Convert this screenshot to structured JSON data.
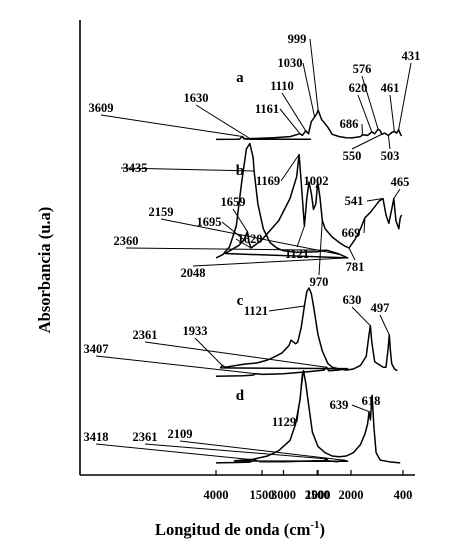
{
  "chart_data": {
    "type": "line",
    "xlabel": "Longitud de onda (cm",
    "xlabel_sup": "-1",
    "xlabel_close": ")",
    "ylabel": "Absorbancia (u.a)",
    "x_ticks": [
      "4000",
      "3000",
      "2500",
      "2000",
      "1500",
      "1000",
      "400"
    ],
    "grid": false,
    "series": [
      {
        "name": "a",
        "label_at": 1740,
        "points": [
          [
            4000,
            0.05
          ],
          [
            3700,
            0.06
          ],
          [
            3650,
            0.08
          ],
          [
            3609,
            0.3
          ],
          [
            3570,
            0.08
          ],
          [
            3450,
            0.06
          ],
          [
            2600,
            0.07
          ],
          [
            1700,
            0.1
          ],
          [
            1630,
            0.12
          ],
          [
            1400,
            0.2
          ],
          [
            1250,
            0.3
          ],
          [
            1161,
            0.55
          ],
          [
            1140,
            0.4
          ],
          [
            1110,
            0.8
          ],
          [
            1085,
            0.55
          ],
          [
            1060,
            1.6
          ],
          [
            1030,
            2.0
          ],
          [
            1010,
            2.3
          ],
          [
            999,
            2.6
          ],
          [
            975,
            1.8
          ],
          [
            930,
            1.1
          ],
          [
            900,
            0.5
          ],
          [
            850,
            0.3
          ],
          [
            800,
            0.2
          ],
          [
            760,
            0.18
          ],
          [
            700,
            0.3
          ],
          [
            686,
            0.45
          ],
          [
            650,
            0.4
          ],
          [
            620,
            0.7
          ],
          [
            600,
            0.55
          ],
          [
            576,
            0.95
          ],
          [
            560,
            0.8
          ],
          [
            550,
            0.5
          ],
          [
            530,
            0.6
          ],
          [
            503,
            0.4
          ],
          [
            480,
            0.65
          ],
          [
            461,
            0.75
          ],
          [
            445,
            0.6
          ],
          [
            431,
            0.9
          ],
          [
            420,
            0.55
          ],
          [
            410,
            0.35
          ]
        ]
      },
      {
        "name": "b",
        "label_at": 1740,
        "points": [
          [
            4000,
            0.22
          ],
          [
            3900,
            0.28
          ],
          [
            3800,
            0.42
          ],
          [
            3700,
            0.8
          ],
          [
            3620,
            1.6
          ],
          [
            3550,
            2.2
          ],
          [
            3500,
            2.3
          ],
          [
            3450,
            2.05
          ],
          [
            3435,
            1.8
          ],
          [
            3380,
            1.2
          ],
          [
            3300,
            0.75
          ],
          [
            3200,
            0.5
          ],
          [
            3100,
            0.4
          ],
          [
            3000,
            0.35
          ],
          [
            2800,
            0.32
          ],
          [
            2500,
            0.33
          ],
          [
            2360,
            0.36
          ],
          [
            2200,
            0.3
          ],
          [
            2159,
            0.28
          ],
          [
            2048,
            0.22
          ],
          [
            1900,
            0.3
          ],
          [
            1750,
            0.45
          ],
          [
            1695,
            0.55
          ],
          [
            1659,
            0.7
          ],
          [
            1640,
            0.5
          ],
          [
            1620,
            0.4
          ],
          [
            1500,
            0.55
          ],
          [
            1350,
            0.9
          ],
          [
            1250,
            1.3
          ],
          [
            1190,
            1.7
          ],
          [
            1169,
            2.1
          ],
          [
            1150,
            1.6
          ],
          [
            1121,
            0.8
          ],
          [
            1100,
            1.3
          ],
          [
            1080,
            1.6
          ],
          [
            1060,
            1.4
          ],
          [
            1040,
            1.1
          ],
          [
            1020,
            1.2
          ],
          [
            1002,
            1.6
          ],
          [
            985,
            1.3
          ],
          [
            970,
            0.9
          ],
          [
            950,
            0.75
          ],
          [
            900,
            0.6
          ],
          [
            850,
            0.5
          ],
          [
            820,
            0.45
          ],
          [
            781,
            0.4
          ],
          [
            740,
            0.55
          ],
          [
            700,
            0.75
          ],
          [
            669,
            0.95
          ],
          [
            630,
            1.05
          ],
          [
            600,
            1.15
          ],
          [
            570,
            1.25
          ],
          [
            541,
            1.3
          ],
          [
            520,
            1.0
          ],
          [
            500,
            0.85
          ],
          [
            480,
            1.1
          ],
          [
            465,
            1.3
          ],
          [
            450,
            0.9
          ],
          [
            430,
            0.75
          ],
          [
            420,
            0.95
          ],
          [
            410,
            1.0
          ]
        ]
      },
      {
        "name": "c",
        "label_at": 1740,
        "points": [
          [
            4000,
            0.05
          ],
          [
            3600,
            0.06
          ],
          [
            3450,
            0.08
          ],
          [
            3407,
            0.12
          ],
          [
            3300,
            0.1
          ],
          [
            3000,
            0.12
          ],
          [
            2800,
            0.15
          ],
          [
            2600,
            0.18
          ],
          [
            2400,
            0.22
          ],
          [
            2361,
            0.3
          ],
          [
            2330,
            0.2
          ],
          [
            2200,
            0.22
          ],
          [
            2050,
            0.26
          ],
          [
            1950,
            0.28
          ],
          [
            1933,
            0.35
          ],
          [
            1900,
            0.3
          ],
          [
            1700,
            0.38
          ],
          [
            1550,
            0.42
          ],
          [
            1450,
            0.5
          ],
          [
            1380,
            0.6
          ],
          [
            1320,
            0.7
          ],
          [
            1260,
            0.9
          ],
          [
            1240,
            1.05
          ],
          [
            1200,
            0.95
          ],
          [
            1180,
            1.0
          ],
          [
            1150,
            1.4
          ],
          [
            1121,
            2.0
          ],
          [
            1100,
            2.4
          ],
          [
            1080,
            2.5
          ],
          [
            1060,
            2.35
          ],
          [
            1040,
            2.0
          ],
          [
            1000,
            1.2
          ],
          [
            970,
            0.75
          ],
          [
            930,
            0.4
          ],
          [
            900,
            0.3
          ],
          [
            850,
            0.25
          ],
          [
            800,
            0.22
          ],
          [
            750,
            0.25
          ],
          [
            700,
            0.35
          ],
          [
            660,
            0.6
          ],
          [
            640,
            1.2
          ],
          [
            630,
            1.45
          ],
          [
            620,
            1.0
          ],
          [
            600,
            0.45
          ],
          [
            580,
            0.4
          ],
          [
            560,
            0.35
          ],
          [
            540,
            0.3
          ],
          [
            520,
            0.3
          ],
          [
            505,
            0.8
          ],
          [
            497,
            1.2
          ],
          [
            490,
            0.8
          ],
          [
            480,
            0.4
          ],
          [
            460,
            0.25
          ],
          [
            440,
            0.2
          ]
        ]
      },
      {
        "name": "d",
        "label_at": 1740,
        "points": [
          [
            4000,
            0.05
          ],
          [
            3700,
            0.06
          ],
          [
            3500,
            0.07
          ],
          [
            3418,
            0.12
          ],
          [
            3350,
            0.08
          ],
          [
            3000,
            0.08
          ],
          [
            2500,
            0.1
          ],
          [
            2400,
            0.1
          ],
          [
            2361,
            0.15
          ],
          [
            2340,
            0.1
          ],
          [
            2200,
            0.08
          ],
          [
            2109,
            0.12
          ],
          [
            2050,
            0.09
          ],
          [
            1800,
            0.1
          ],
          [
            1600,
            0.14
          ],
          [
            1450,
            0.22
          ],
          [
            1350,
            0.35
          ],
          [
            1250,
            0.6
          ],
          [
            1200,
            1.0
          ],
          [
            1160,
            1.6
          ],
          [
            1140,
            2.2
          ],
          [
            1129,
            2.3
          ],
          [
            1110,
            2.0
          ],
          [
            1080,
            1.4
          ],
          [
            1050,
            0.8
          ],
          [
            1000,
            0.45
          ],
          [
            950,
            0.3
          ],
          [
            900,
            0.22
          ],
          [
            850,
            0.2
          ],
          [
            800,
            0.22
          ],
          [
            750,
            0.3
          ],
          [
            700,
            0.5
          ],
          [
            670,
            0.75
          ],
          [
            650,
            1.0
          ],
          [
            639,
            1.3
          ],
          [
            630,
            1.1
          ],
          [
            618,
            1.7
          ],
          [
            605,
            0.9
          ],
          [
            590,
            0.3
          ],
          [
            560,
            0.12
          ],
          [
            500,
            0.08
          ],
          [
            450,
            0.06
          ],
          [
            420,
            0.05
          ]
        ]
      }
    ],
    "annotations": [
      {
        "text": "3609",
        "series": "a",
        "x": 3609
      },
      {
        "text": "1630",
        "series": "a",
        "x": 1630
      },
      {
        "text": "1161",
        "series": "a",
        "x": 1161
      },
      {
        "text": "1110",
        "series": "a",
        "x": 1110
      },
      {
        "text": "1030",
        "series": "a",
        "x": 1030
      },
      {
        "text": "999",
        "series": "a",
        "x": 999
      },
      {
        "text": "686",
        "series": "a",
        "x": 686
      },
      {
        "text": "620",
        "series": "a",
        "x": 620
      },
      {
        "text": "576",
        "series": "a",
        "x": 576
      },
      {
        "text": "550",
        "series": "a",
        "x": 550
      },
      {
        "text": "503",
        "series": "a",
        "x": 503
      },
      {
        "text": "461",
        "series": "a",
        "x": 461
      },
      {
        "text": "431",
        "series": "a",
        "x": 431
      },
      {
        "text": "3435",
        "series": "b",
        "x": 3435
      },
      {
        "text": "2159",
        "series": "b",
        "x": 2159
      },
      {
        "text": "2360",
        "series": "b",
        "x": 2360
      },
      {
        "text": "2048",
        "series": "b",
        "x": 2048
      },
      {
        "text": "1695",
        "series": "b",
        "x": 1695
      },
      {
        "text": "1659",
        "series": "b",
        "x": 1659
      },
      {
        "text": "1620",
        "series": "b",
        "x": 1620
      },
      {
        "text": "1169",
        "series": "b",
        "x": 1169
      },
      {
        "text": "1121",
        "series": "b",
        "x": 1121
      },
      {
        "text": "1002",
        "series": "b",
        "x": 1002
      },
      {
        "text": "970",
        "series": "b",
        "x": 970
      },
      {
        "text": "781",
        "series": "b",
        "x": 781
      },
      {
        "text": "669",
        "series": "b",
        "x": 669
      },
      {
        "text": "541",
        "series": "b",
        "x": 541
      },
      {
        "text": "465",
        "series": "b",
        "x": 465
      },
      {
        "text": "3407",
        "series": "c",
        "x": 3407
      },
      {
        "text": "2361",
        "series": "c",
        "x": 2361
      },
      {
        "text": "1933",
        "series": "c",
        "x": 1933
      },
      {
        "text": "1121",
        "series": "c",
        "x": 1121
      },
      {
        "text": "630",
        "series": "c",
        "x": 630
      },
      {
        "text": "497",
        "series": "c",
        "x": 497
      },
      {
        "text": "3418",
        "series": "d",
        "x": 3418
      },
      {
        "text": "2361",
        "series": "d",
        "x": 2361
      },
      {
        "text": "2109",
        "series": "d",
        "x": 2109
      },
      {
        "text": "1129",
        "series": "d",
        "x": 1129
      },
      {
        "text": "639",
        "series": "d",
        "x": 639
      },
      {
        "text": "618",
        "series": "d",
        "x": 618
      }
    ]
  }
}
